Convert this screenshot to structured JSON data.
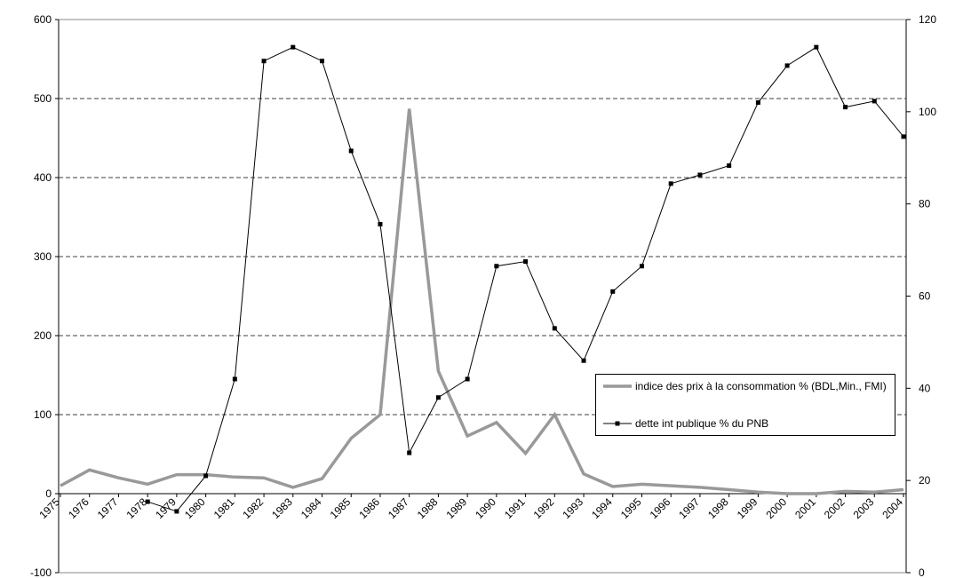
{
  "chart_data": {
    "type": "line",
    "categories": [
      "1975",
      "1976",
      "1977",
      "1978",
      "1979",
      "1980",
      "1981",
      "1982",
      "1983",
      "1984",
      "1985",
      "1986",
      "1987",
      "1988",
      "1989",
      "1990",
      "1991",
      "1992",
      "1993",
      "1994",
      "1995",
      "1996",
      "1997",
      "1998",
      "1999",
      "2000",
      "2001",
      "2002",
      "2003",
      "2004"
    ],
    "series": [
      {
        "name": "indice des prix à la consommation % (BDL,Min., FMI)",
        "color": "#999999",
        "values": [
          10,
          30,
          20,
          12,
          24,
          24,
          21,
          20,
          8,
          19,
          70,
          100,
          487,
          155,
          73,
          90,
          51,
          100,
          25,
          9,
          12,
          10,
          8,
          5,
          2,
          0,
          0,
          3,
          2,
          5
        ]
      },
      {
        "name": "dette int publique % du PNB",
        "color": "#000000",
        "axis": "y2",
        "marker": "square",
        "values": [
          null,
          null,
          null,
          15.4,
          13.3,
          21,
          42,
          111,
          114,
          111,
          91.5,
          75.6,
          26,
          38,
          42,
          66.5,
          67.5,
          53,
          46,
          61,
          66.5,
          84.4,
          86.3,
          88.3,
          102,
          110,
          114,
          101,
          102.3,
          94.6
        ]
      }
    ],
    "ylim": [
      -100,
      600
    ],
    "yticks": [
      -100,
      0,
      100,
      200,
      300,
      400,
      500,
      600
    ],
    "y2lim": [
      0,
      120
    ],
    "y2ticks": [
      0,
      20,
      40,
      60,
      80,
      100,
      120
    ],
    "grid": true
  }
}
